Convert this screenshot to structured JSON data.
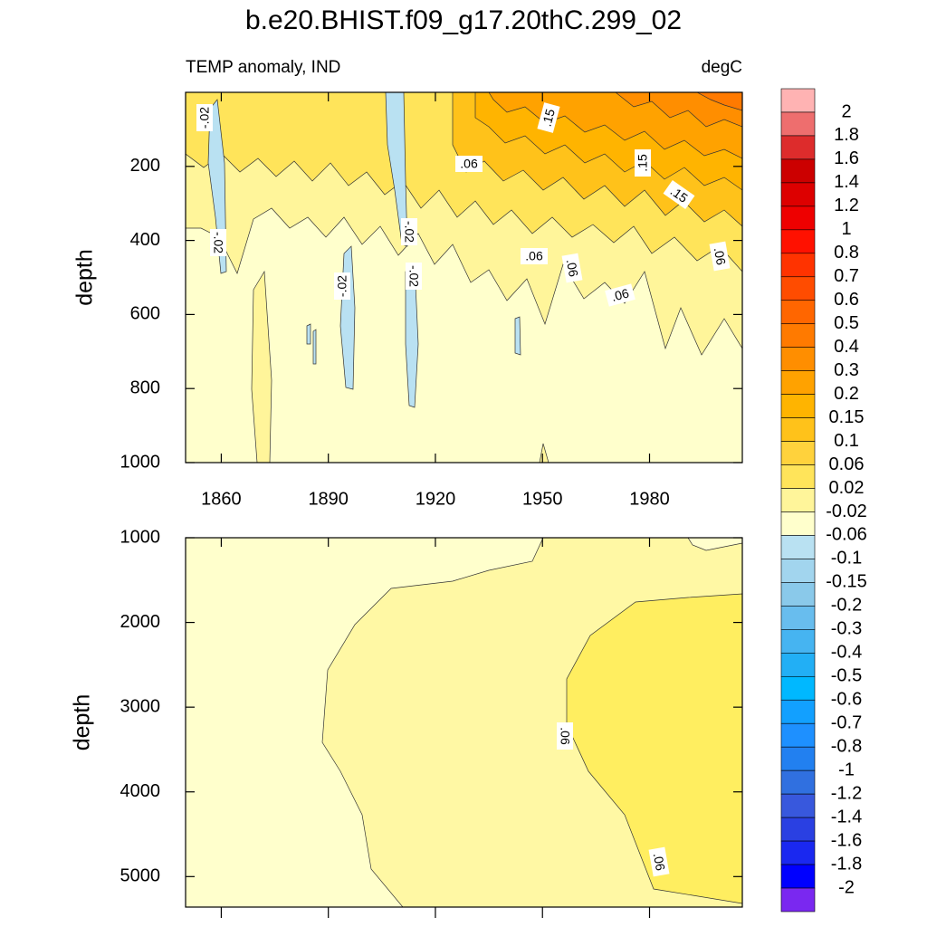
{
  "chart_data": {
    "type": "contour",
    "title": "b.e20.BHIST.f09_g17.20thC.299_02",
    "subtitle_left": "TEMP anomaly, IND",
    "subtitle_right": "degC",
    "xlim": [
      1850,
      2006
    ],
    "xticks": [
      1860,
      1890,
      1920,
      1950,
      1980
    ],
    "panels": [
      {
        "ylabel": "depth",
        "ylim": [
          0,
          1000
        ],
        "yticks": [
          200,
          400,
          600,
          800,
          1000
        ],
        "contour_labels": [
          "-.02",
          "-.02",
          "-.02",
          "-.02",
          "-.02",
          ".15",
          ".06",
          ".15",
          ".15",
          ".06",
          ".06",
          ".06",
          ".06"
        ]
      },
      {
        "ylabel": "depth",
        "ylim": [
          1000,
          5360
        ],
        "yticks": [
          1000,
          2000,
          3000,
          4000,
          5000
        ],
        "contour_labels": [
          ".06",
          ".06"
        ]
      }
    ],
    "colorbar": {
      "levels": [
        2,
        1.8,
        1.6,
        1.4,
        1.2,
        1,
        0.8,
        0.7,
        0.6,
        0.5,
        0.4,
        0.3,
        0.2,
        0.15,
        0.1,
        0.06,
        0.02,
        -0.02,
        -0.06,
        -0.1,
        -0.15,
        -0.2,
        -0.3,
        -0.4,
        -0.5,
        -0.6,
        -0.7,
        -0.8,
        -1,
        -1.2,
        -1.4,
        -1.6,
        -1.8,
        -2
      ],
      "colors": [
        "#ffb3b3",
        "#ee6e6e",
        "#dd2c2c",
        "#cc0000",
        "#dd0000",
        "#ee0000",
        "#ff1100",
        "#ff3300",
        "#ff4c00",
        "#ff6600",
        "#ff7a00",
        "#ff8e00",
        "#ffa200",
        "#ffb400",
        "#ffc21a",
        "#ffd23c",
        "#ffe45a",
        "#fff59a",
        "#ffffcc",
        "#b9e1f2",
        "#a2d5ee",
        "#8ac9ea",
        "#68bdee",
        "#46b4f1",
        "#22aff5",
        "#00b8ff",
        "#12a0ff",
        "#1e90ff",
        "#2280f0",
        "#3070e0",
        "#3858dd",
        "#2a40e2",
        "#1a28f0",
        "#0000ff",
        "#7a28f0"
      ]
    }
  }
}
